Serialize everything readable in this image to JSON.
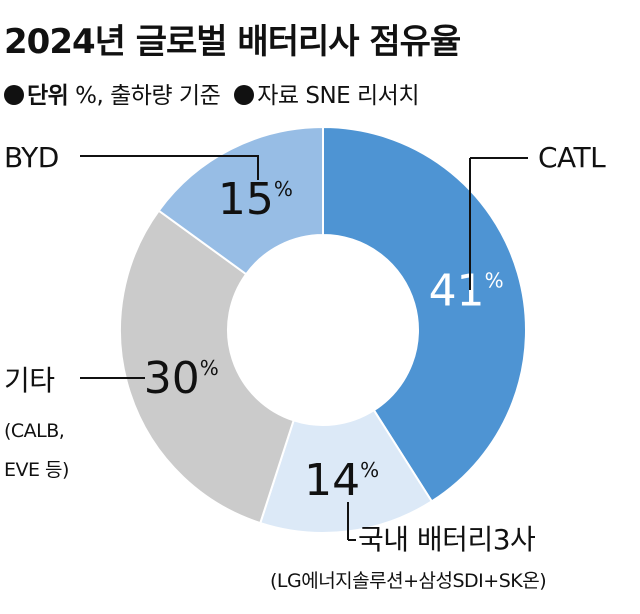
{
  "header": {
    "title": "2024년 글로벌 배터리사 점유율",
    "unit_label": "단위",
    "unit_value": "%, 출하량 기준",
    "source_label": "자료 SNE 리서치"
  },
  "chart_data": {
    "type": "pie",
    "style": "donut",
    "categories": [
      "CATL",
      "국내 배터리3사",
      "기타",
      "BYD"
    ],
    "values": [
      41,
      14,
      30,
      15
    ],
    "value_suffix": "%",
    "notes": [
      "",
      "(LG에너지솔루션+삼성SDI+SK온)",
      "(CALB, EVE 등)",
      ""
    ],
    "colors": [
      "#4e94d3",
      "#dce9f7",
      "#cbcbcb",
      "#97bde5"
    ],
    "value_colors": [
      "#ffffff",
      "#111111",
      "#111111",
      "#111111"
    ],
    "legend": "none"
  }
}
